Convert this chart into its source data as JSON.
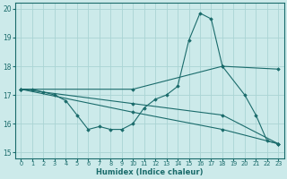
{
  "xlabel": "Humidex (Indice chaleur)",
  "background_color": "#cceaea",
  "grid_color": "#aad4d4",
  "line_color": "#1a6b6b",
  "xlim": [
    -0.5,
    23.5
  ],
  "ylim": [
    14.8,
    20.2
  ],
  "xticks": [
    0,
    1,
    2,
    3,
    4,
    5,
    6,
    7,
    8,
    9,
    10,
    11,
    12,
    13,
    14,
    15,
    16,
    17,
    18,
    19,
    20,
    21,
    22,
    23
  ],
  "yticks": [
    15,
    16,
    17,
    18,
    19,
    20
  ],
  "series": [
    {
      "x": [
        0,
        1,
        2,
        3,
        4,
        5,
        6,
        7,
        8,
        9,
        10,
        11,
        12,
        13,
        14,
        15,
        16,
        17,
        18,
        20,
        21,
        22,
        23
      ],
      "y": [
        17.2,
        17.2,
        17.1,
        17.0,
        16.8,
        16.3,
        15.8,
        15.9,
        15.8,
        15.8,
        16.0,
        16.55,
        16.85,
        17.0,
        17.3,
        18.9,
        19.85,
        19.65,
        18.0,
        17.0,
        16.3,
        15.4,
        15.3
      ]
    },
    {
      "x": [
        0,
        10,
        18,
        23
      ],
      "y": [
        17.2,
        17.2,
        18.0,
        17.9
      ]
    },
    {
      "x": [
        0,
        10,
        18,
        23
      ],
      "y": [
        17.2,
        16.7,
        16.3,
        15.3
      ]
    },
    {
      "x": [
        0,
        10,
        18,
        23
      ],
      "y": [
        17.2,
        16.4,
        15.8,
        15.3
      ]
    }
  ]
}
